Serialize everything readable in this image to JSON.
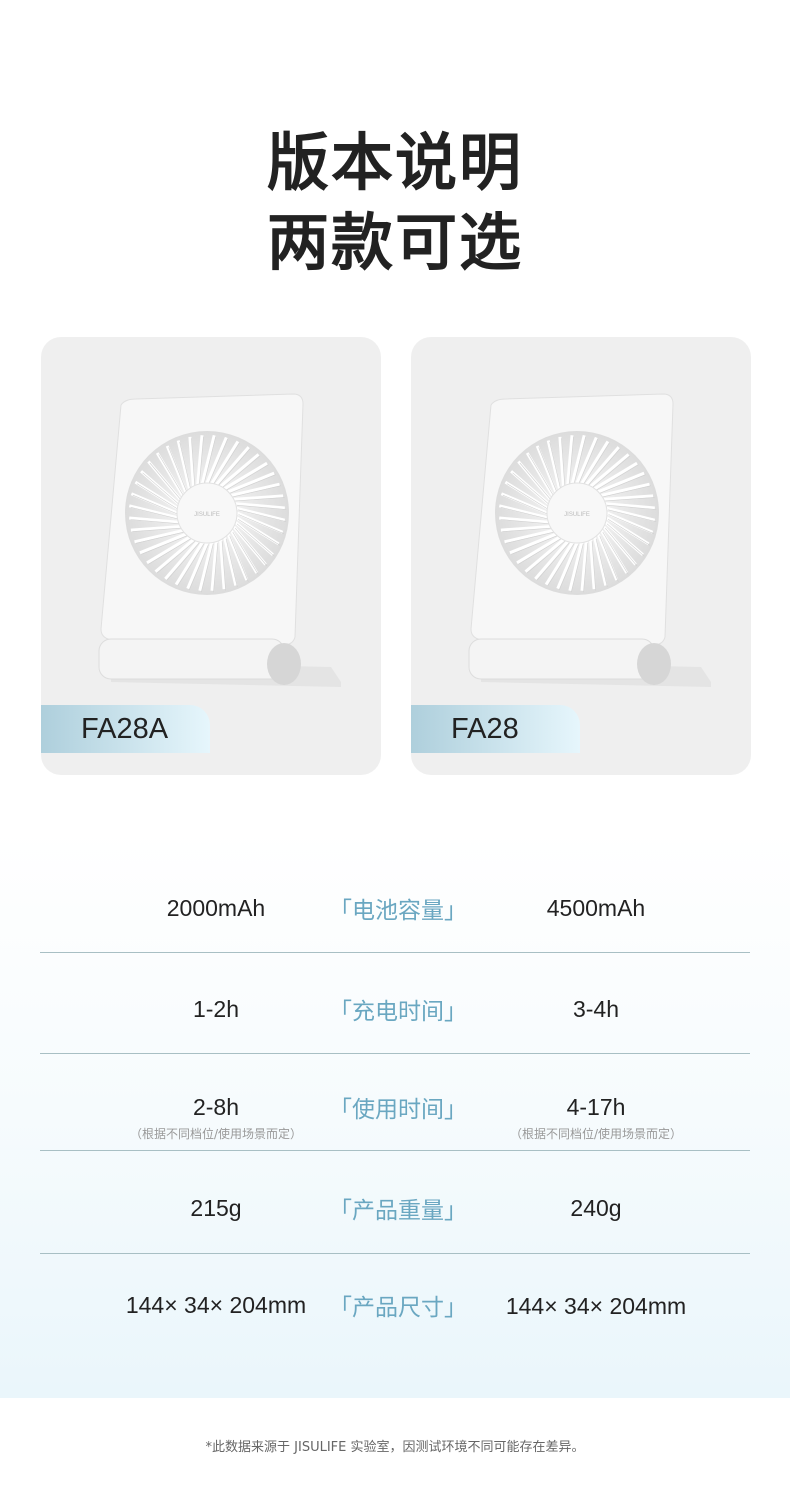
{
  "header": {
    "line1": "版本说明",
    "line2": "两款可选"
  },
  "products": [
    {
      "model": "FA28A",
      "logo": "JISULIFE"
    },
    {
      "model": "FA28",
      "logo": "JISULIFE"
    }
  ],
  "colors": {
    "card_bg": "#efefef",
    "accent": "#6aa7c1",
    "badge_start": "#aecfdc",
    "badge_end": "#e6f6fc",
    "divider": "#a8bfc4"
  },
  "specs": [
    {
      "label": "「电池容量」",
      "left": "2000mAh",
      "right": "4500mAh"
    },
    {
      "label": "「充电时间」",
      "left": "1-2h",
      "right": "3-4h"
    },
    {
      "label": "「使用时间」",
      "left": "2-8h",
      "right": "4-17h",
      "left_note": "（根据不同档位/使用场景而定）",
      "right_note": "（根据不同档位/使用场景而定）"
    },
    {
      "label": "「产品重量」",
      "left": "215g",
      "right": "240g"
    },
    {
      "label": "「产品尺寸」",
      "left": "144× 34× 204mm",
      "right": "144× 34× 204mm"
    }
  ],
  "footnote": "*此数据来源于 JISULIFE 实验室，因测试环境不同可能存在差异。"
}
